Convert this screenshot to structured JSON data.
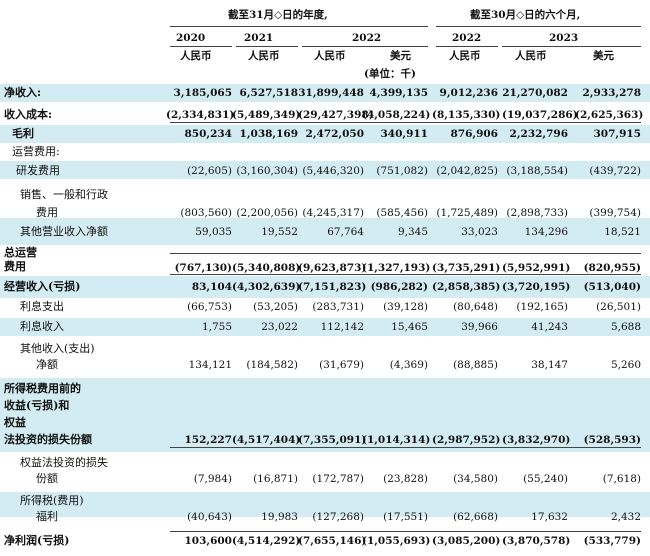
{
  "header": {
    "group_year": "截至31月◇日的年度,",
    "group_six": "截至30月◇日的六个月,",
    "years": [
      "2020",
      "2021",
      "2022",
      "2022",
      "2023"
    ],
    "currencies": [
      "人民币",
      "人民币",
      "人民币",
      "美元",
      "人民币",
      "人民币",
      "美元"
    ],
    "unit": "(单位：千)"
  },
  "rows": [
    {
      "label": "净收入:",
      "values": [
        "3,185,065",
        "6,527,518",
        "31,899,448",
        "4,399,135",
        "9,012,236",
        "21,270,082",
        "2,933,278"
      ]
    },
    {
      "label": "收入成本:",
      "values": [
        "(2,334,831)",
        "(5,489,349)",
        "(29,427,398)",
        "(4,058,224)",
        "(8,135,330)",
        "(19,037,286)",
        "(2,625,363)"
      ]
    },
    {
      "label": "毛利",
      "values": [
        "850,234",
        "1,038,169",
        "2,472,050",
        "340,911",
        "876,906",
        "2,232,796",
        "307,915"
      ]
    },
    {
      "label": "运营费用:",
      "values": []
    },
    {
      "label": "研发费用",
      "values": [
        "(22,605)",
        "(3,160,304)",
        "(5,446,320)",
        "(751,082)",
        "(2,042,825)",
        "(3,188,554)",
        "(439,722)"
      ]
    },
    {
      "label": [
        "销售、一般和行政",
        "费用"
      ],
      "values": [
        "(803,560)",
        "(2,200,056)",
        "(4,245,317)",
        "(585,456)",
        "(1,725,489)",
        "(2,898,733)",
        "(399,754)"
      ]
    },
    {
      "label": "其他营业收入净额",
      "values": [
        "59,035",
        "19,552",
        "67,764",
        "9,345",
        "33,023",
        "134,296",
        "18,521"
      ]
    },
    {
      "label": [
        "总运营",
        "费用"
      ],
      "values": [
        "(767,130)",
        "(5,340,808)",
        "(9,623,873)",
        "(1,327,193)",
        "(3,735,291)",
        "(5,952,991)",
        "(820,955)"
      ]
    },
    {
      "label": "经营收入(亏损)",
      "values": [
        "83,104",
        "(4,302,639)",
        "(7,151,823)",
        "(986,282)",
        "(2,858,385)",
        "(3,720,195)",
        "(513,040)"
      ]
    },
    {
      "label": "利息支出",
      "values": [
        "(66,753)",
        "(53,205)",
        "(283,731)",
        "(39,128)",
        "(80,648)",
        "(192,165)",
        "(26,501)"
      ]
    },
    {
      "label": "利息收入",
      "values": [
        "1,755",
        "23,022",
        "112,142",
        "15,465",
        "39,966",
        "41,243",
        "5,688"
      ]
    },
    {
      "label": [
        "其他收入(支出)",
        "净额"
      ],
      "values": [
        "134,121",
        "(184,582)",
        "(31,679)",
        "(4,369)",
        "(88,885)",
        "38,147",
        "5,260"
      ]
    },
    {
      "label": [
        "所得税费用前的",
        "收益(亏损)和",
        "权益",
        "法投资的损失份额"
      ],
      "values": [
        "152,227",
        "(4,517,404)",
        "(7,355,091)",
        "(1,014,314)",
        "(2,987,952)",
        "(3,832,970)",
        "(528,593)"
      ]
    },
    {
      "label": [
        "权益法投资的损失",
        "份额"
      ],
      "values": [
        "(7,984)",
        "(16,871)",
        "(172,787)",
        "(23,828)",
        "(34,580)",
        "(55,240)",
        "(7,618)"
      ]
    },
    {
      "label": [
        "所得税(费用)",
        "福利"
      ],
      "values": [
        "(40,643)",
        "19,983",
        "(127,268)",
        "(17,551)",
        "(62,668)",
        "17,632",
        "2,432"
      ]
    },
    {
      "label": "净利润(亏损)",
      "values": [
        "103,600",
        "(4,514,292)",
        "(7,655,146)",
        "(1,055,693)",
        "(3,085,200)",
        "(3,870,578)",
        "(533,779)"
      ]
    }
  ]
}
